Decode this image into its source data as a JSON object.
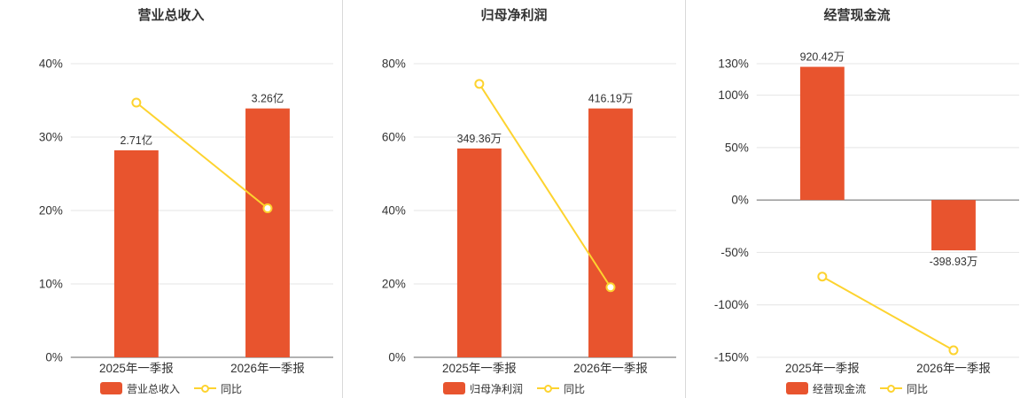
{
  "colors": {
    "bar": "#e8542e",
    "line": "#fdd32f",
    "axis": "#666666",
    "grid": "#e4e4e4",
    "text": "#333333",
    "divider": "#d9d9d9"
  },
  "chart_data": [
    {
      "type": "bar",
      "title": "营业总收入",
      "categories": [
        "2025年一季报",
        "2026年一季报"
      ],
      "ylim": [
        0,
        40
      ],
      "yticks": [
        0,
        10,
        20,
        30,
        40
      ],
      "ytick_suffix": "%",
      "grid": true,
      "legend_position": "bottom",
      "series": [
        {
          "name": "营业总收入",
          "type": "bar",
          "data_labels": [
            "2.71亿",
            "3.26亿"
          ],
          "plotted_pct": [
            28.2,
            33.9
          ]
        },
        {
          "name": "同比",
          "type": "line",
          "plotted_pct": [
            34.7,
            20.3
          ]
        }
      ]
    },
    {
      "type": "bar",
      "title": "归母净利润",
      "categories": [
        "2025年一季报",
        "2026年一季报"
      ],
      "ylim": [
        0,
        80
      ],
      "yticks": [
        0,
        20,
        40,
        60,
        80
      ],
      "ytick_suffix": "%",
      "grid": true,
      "legend_position": "bottom",
      "series": [
        {
          "name": "归母净利润",
          "type": "bar",
          "data_labels": [
            "349.36万",
            "416.19万"
          ],
          "plotted_pct": [
            56.9,
            67.8
          ]
        },
        {
          "name": "同比",
          "type": "line",
          "plotted_pct": [
            74.5,
            19.1
          ]
        }
      ]
    },
    {
      "type": "bar",
      "title": "经营现金流",
      "categories": [
        "2025年一季报",
        "2026年一季报"
      ],
      "ylim": [
        -150,
        130
      ],
      "yticks": [
        130,
        100,
        50,
        0,
        -50,
        -100,
        -150
      ],
      "ytick_suffix": "%",
      "grid": true,
      "legend_position": "bottom",
      "series": [
        {
          "name": "经营现金流",
          "type": "bar",
          "data_labels": [
            "920.42万",
            "-398.93万"
          ],
          "plotted_pct": [
            127,
            -48
          ]
        },
        {
          "name": "同比",
          "type": "line",
          "plotted_pct": [
            -73,
            -143.3
          ]
        }
      ]
    }
  ]
}
